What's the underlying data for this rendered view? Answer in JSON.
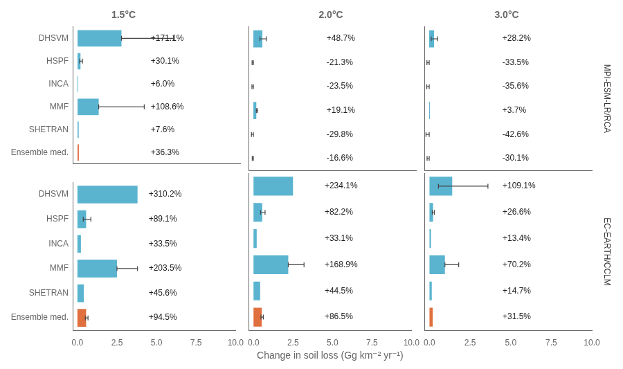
{
  "chart_data": [
    {
      "type": "bar",
      "orientation": "horizontal",
      "title": "1.5°C",
      "categories": [
        "DHSVM",
        "HSPF",
        "INCA",
        "MMF",
        "SHETRAN",
        "Ensemble med."
      ],
      "values": [
        2.7,
        0.18,
        0.04,
        1.3,
        0.07,
        0.08
      ],
      "err_minus": [
        0.0,
        0.05,
        0.0,
        0.0,
        0.0,
        0.0
      ],
      "err_plus": [
        3.2,
        0.12,
        0.0,
        2.8,
        0.0,
        0.0
      ],
      "colors": [
        "#5ab4d0",
        "#5ab4d0",
        "#5ab4d0",
        "#5ab4d0",
        "#5ab4d0",
        "#e07040"
      ],
      "annotations": [
        {
          "x": 4.5,
          "y": "DHSVM",
          "text": "+171.1%"
        },
        {
          "x": 4.5,
          "y": "HSPF",
          "text": "+30.1%"
        },
        {
          "x": 4.5,
          "y": "INCA",
          "text": "+6.0%"
        },
        {
          "x": 4.5,
          "y": "MMF",
          "text": "+108.6%"
        },
        {
          "x": 4.5,
          "y": "SHETRAN",
          "text": "+7.6%"
        },
        {
          "x": 4.5,
          "y": "Ensemble med.",
          "text": "+36.3%"
        }
      ],
      "xlim": [
        -0.3,
        10.0
      ],
      "xticks": [
        {
          "value": 0.0,
          "label": "0.0"
        },
        2.5,
        {
          "value": 5.0,
          "label": "5.0"
        },
        7.5,
        {
          "value": 10.0,
          "label": "10.0"
        }
      ],
      "grid": false,
      "tick_labels": "y"
    },
    {
      "type": "bar",
      "orientation": "horizontal",
      "title": "2.0°C",
      "categories": [
        "DHSVM",
        "HSPF",
        "INCA",
        "MMF",
        "SHETRAN",
        "Ensemble med."
      ],
      "values": [
        0.55,
        0.0,
        0.0,
        0.18,
        0.0,
        0.0
      ],
      "err_minus": [
        0.15,
        0.08,
        0.09,
        0.0,
        0.12,
        0.07
      ],
      "err_plus": [
        0.25,
        0.0,
        0.0,
        0.08,
        0.0,
        0.0
      ],
      "colors": [
        "#5ab4d0",
        "#5ab4d0",
        "#5ab4d0",
        "#5ab4d0",
        "#5ab4d0",
        "#e07040"
      ],
      "annotations": [
        {
          "x": 4.5,
          "y": "DHSVM",
          "text": "+48.7%"
        },
        {
          "x": 4.5,
          "y": "HSPF",
          "text": "-21.3%"
        },
        {
          "x": 4.5,
          "y": "INCA",
          "text": "-23.5%"
        },
        {
          "x": 4.5,
          "y": "MMF",
          "text": "+19.1%"
        },
        {
          "x": 4.5,
          "y": "SHETRAN",
          "text": "-29.8%"
        },
        {
          "x": 4.5,
          "y": "Ensemble med.",
          "text": "-16.6%"
        }
      ],
      "xlim": [
        -0.3,
        10.0
      ],
      "xticks": [
        {
          "value": 0.0,
          "label": "0.0"
        },
        2.5,
        {
          "value": 5.0,
          "label": "5.0"
        },
        7.5,
        {
          "value": 10.0,
          "label": "10.0"
        }
      ],
      "grid": false,
      "tick_labels": false
    },
    {
      "type": "bar",
      "orientation": "horizontal",
      "title": "3.0°C",
      "subtitle": "MPI-ESM-LR/RCA",
      "categories": [
        "DHSVM",
        "HSPF",
        "INCA",
        "MMF",
        "SHETRAN",
        "Ensemble med."
      ],
      "values": [
        0.3,
        0.0,
        0.0,
        0.04,
        0.0,
        0.0
      ],
      "err_minus": [
        0.18,
        0.14,
        0.15,
        0.0,
        0.2,
        0.13
      ],
      "err_plus": [
        0.22,
        0.0,
        0.0,
        0.0,
        0.0,
        0.0
      ],
      "colors": [
        "#5ab4d0",
        "#5ab4d0",
        "#5ab4d0",
        "#5ab4d0",
        "#5ab4d0",
        "#e07040"
      ],
      "annotations": [
        {
          "x": 4.5,
          "y": "DHSVM",
          "text": "+28.2%"
        },
        {
          "x": 4.5,
          "y": "HSPF",
          "text": "-33.5%"
        },
        {
          "x": 4.5,
          "y": "INCA",
          "text": "-35.6%"
        },
        {
          "x": 4.5,
          "y": "MMF",
          "text": "+3.7%"
        },
        {
          "x": 4.5,
          "y": "SHETRAN",
          "text": "-42.6%"
        },
        {
          "x": 4.5,
          "y": "Ensemble med.",
          "text": "-30.1%"
        }
      ],
      "xlim": [
        -0.3,
        10.0
      ],
      "xticks": [
        {
          "value": 0.0,
          "label": "0.0"
        },
        2.5,
        {
          "value": 5.0,
          "label": "5.0"
        },
        7.5,
        {
          "value": 10.0,
          "label": "10.0"
        }
      ],
      "grid": false,
      "tick_labels": false
    },
    {
      "type": "bar",
      "orientation": "horizontal",
      "categories": [
        "DHSVM",
        "HSPF",
        "INCA",
        "MMF",
        "SHETRAN",
        "Ensemble med."
      ],
      "values": [
        3.8,
        0.55,
        0.22,
        2.5,
        0.4,
        0.55
      ],
      "err_minus": [
        0.0,
        0.18,
        0.0,
        0.0,
        0.0,
        0.05
      ],
      "err_plus": [
        0.0,
        0.3,
        0.0,
        1.3,
        0.0,
        0.12
      ],
      "colors": [
        "#5ab4d0",
        "#5ab4d0",
        "#5ab4d0",
        "#5ab4d0",
        "#5ab4d0",
        "#e07040"
      ],
      "annotations": [
        {
          "x": 4.5,
          "y": "DHSVM",
          "text": "+310.2%"
        },
        {
          "x": 4.5,
          "y": "HSPF",
          "text": "+89.1%"
        },
        {
          "x": 4.5,
          "y": "INCA",
          "text": "+33.5%"
        },
        {
          "x": 4.5,
          "y": "MMF",
          "text": "+203.5%"
        },
        {
          "x": 4.5,
          "y": "SHETRAN",
          "text": "+45.6%"
        },
        {
          "x": 4.5,
          "y": "Ensemble med.",
          "text": "+94.5%"
        }
      ],
      "xlim": [
        -0.3,
        10.0
      ],
      "xticks": [
        {
          "value": 0.0,
          "label": "0.0"
        },
        2.5,
        {
          "value": 5.0,
          "label": "5.0"
        },
        7.5,
        {
          "value": 10.0,
          "label": "10.0"
        }
      ],
      "grid": false
    },
    {
      "type": "bar",
      "orientation": "horizontal",
      "xlabel": "Change in soil loss (Gg km⁻² yr⁻¹)",
      "categories": [
        "DHSVM",
        "HSPF",
        "INCA",
        "MMF",
        "SHETRAN",
        "Ensemble med."
      ],
      "values": [
        2.5,
        0.55,
        0.2,
        2.2,
        0.42,
        0.52
      ],
      "err_minus": [
        0.0,
        0.1,
        0.0,
        0.0,
        0.0,
        0.05
      ],
      "err_plus": [
        0.0,
        0.18,
        0.0,
        1.0,
        0.0,
        0.1
      ],
      "colors": [
        "#5ab4d0",
        "#5ab4d0",
        "#5ab4d0",
        "#5ab4d0",
        "#5ab4d0",
        "#e07040"
      ],
      "annotations": [
        {
          "x": 4.5,
          "y": "DHSVM",
          "text": "+234.1%"
        },
        {
          "x": 4.5,
          "y": "HSPF",
          "text": "+82.2%"
        },
        {
          "x": 4.5,
          "y": "INCA",
          "text": "+33.1%"
        },
        {
          "x": 4.5,
          "y": "MMF",
          "text": "+168.9%"
        },
        {
          "x": 4.5,
          "y": "SHETRAN",
          "text": "+44.5%"
        },
        {
          "x": 4.5,
          "y": "Ensemble med.",
          "text": "+86.5%"
        }
      ],
      "xlim": [
        -0.3,
        10.0
      ],
      "xticks": [
        {
          "value": 0.0,
          "label": "0.0"
        },
        2.5,
        {
          "value": 5.0,
          "label": "5.0"
        },
        7.5,
        {
          "value": 10.0,
          "label": "10.0"
        }
      ],
      "grid": false,
      "tick_labels": "x"
    },
    {
      "type": "bar",
      "orientation": "horizontal",
      "subtitle": "EC-EARTH/CCLM",
      "categories": [
        "DHSVM",
        "HSPF",
        "INCA",
        "MMF",
        "SHETRAN",
        "Ensemble med."
      ],
      "values": [
        1.4,
        0.22,
        0.09,
        0.95,
        0.14,
        0.2
      ],
      "err_minus": [
        0.85,
        0.05,
        0.0,
        0.0,
        0.0,
        0.0
      ],
      "err_plus": [
        2.2,
        0.08,
        0.0,
        0.85,
        0.0,
        0.0
      ],
      "colors": [
        "#5ab4d0",
        "#5ab4d0",
        "#5ab4d0",
        "#5ab4d0",
        "#5ab4d0",
        "#e07040"
      ],
      "annotations": [
        {
          "x": 4.5,
          "y": "DHSVM",
          "text": "+109.1%"
        },
        {
          "x": 4.5,
          "y": "HSPF",
          "text": "+26.6%"
        },
        {
          "x": 4.5,
          "y": "INCA",
          "text": "+13.4%"
        },
        {
          "x": 4.5,
          "y": "MMF",
          "text": "+70.2%"
        },
        {
          "x": 4.5,
          "y": "SHETRAN",
          "text": "+14.7%"
        },
        {
          "x": 4.5,
          "y": "Ensemble med.",
          "text": "+31.5%"
        }
      ],
      "xlim": [
        -0.3,
        10.0
      ],
      "xticks": [
        {
          "value": 0.0,
          "label": "0.0"
        },
        2.5,
        {
          "value": 5.0,
          "label": "5.0"
        },
        7.5,
        {
          "value": 10.0,
          "label": "10.0"
        }
      ],
      "grid": false,
      "tick_labels": "x"
    }
  ]
}
